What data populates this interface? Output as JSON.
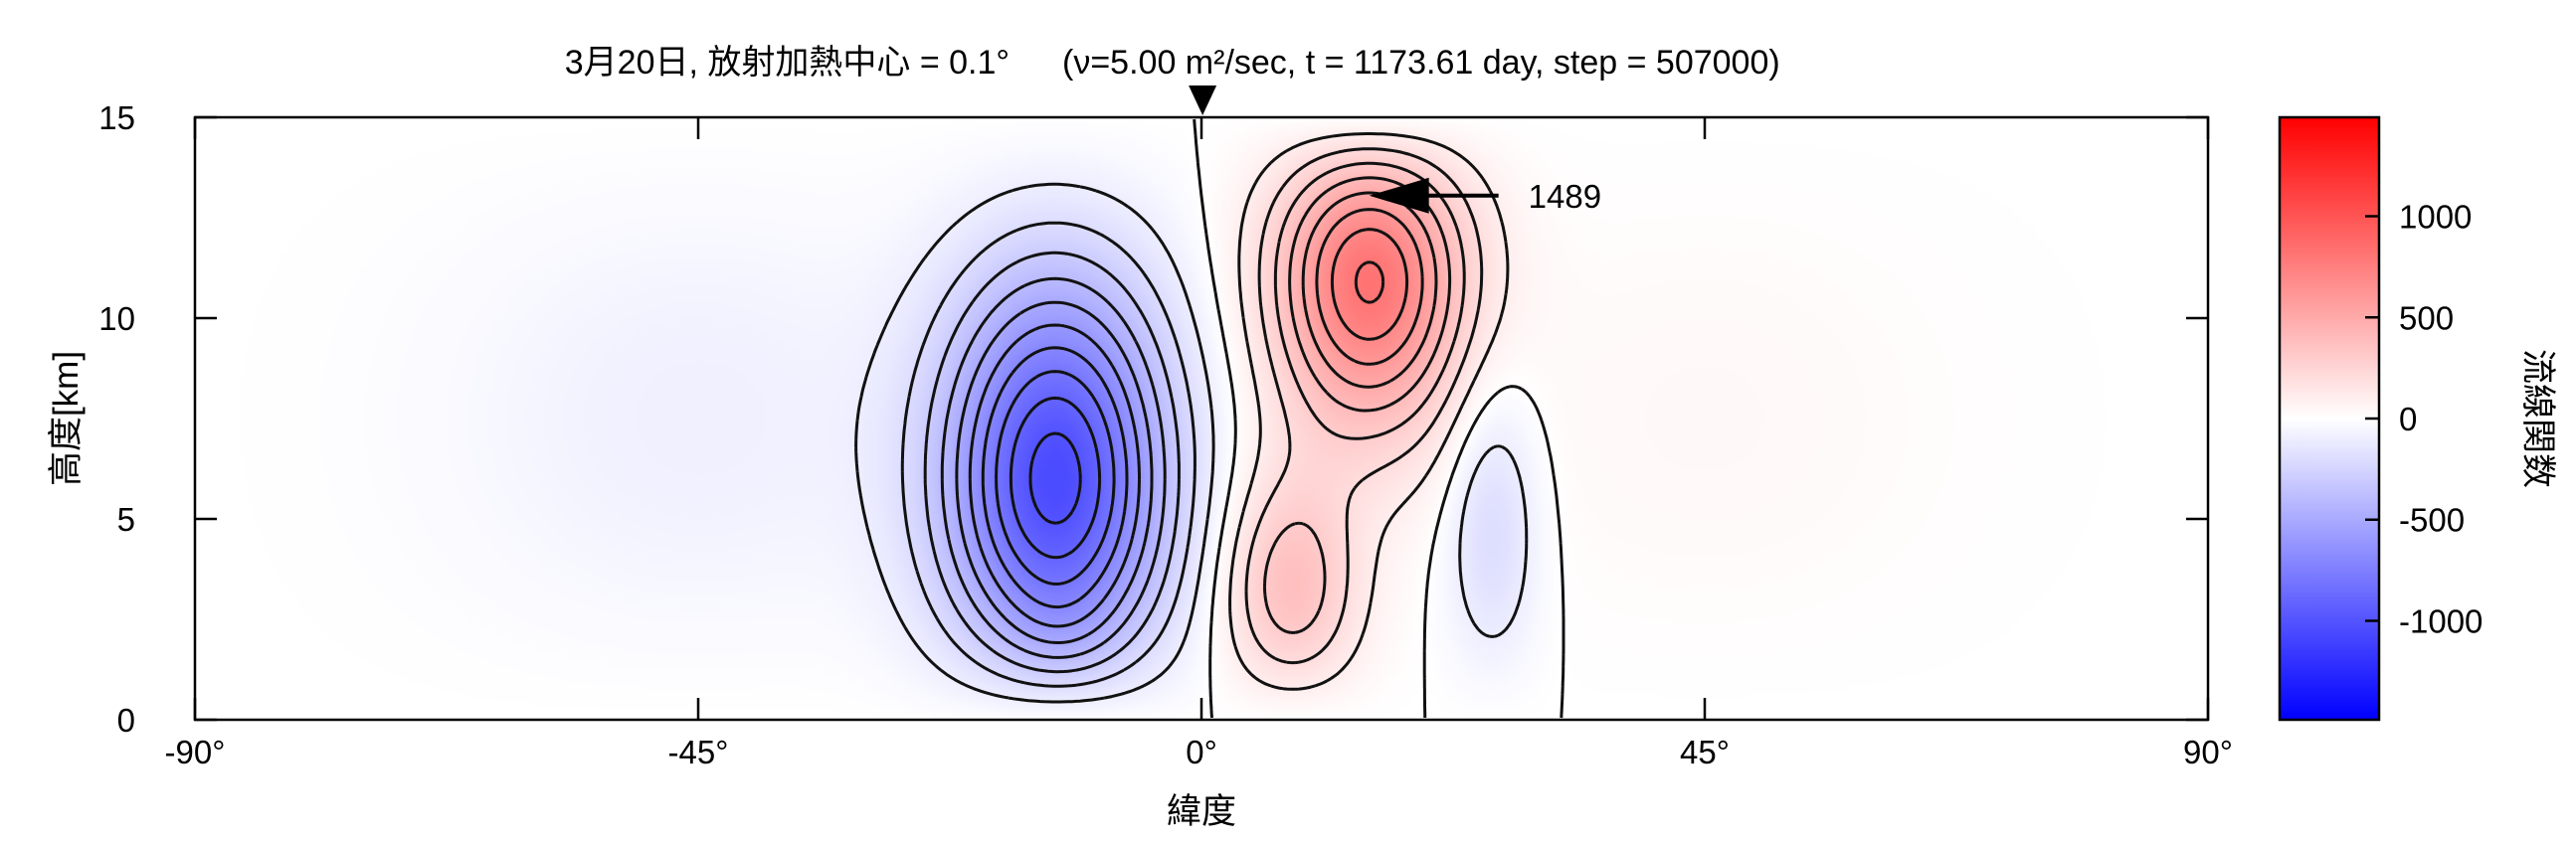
{
  "chart_data": {
    "type": "heatmap",
    "title": "3月20日, 放射加熱中心 = 0.1°",
    "title_params": "(ν=5.00 m²/sec, t = 1173.61 day, step = 507000)",
    "xlabel": "緯度",
    "ylabel": "高度[km]",
    "colorbar_label": "流線関数",
    "xlim": [
      -90,
      90
    ],
    "ylim": [
      0,
      15
    ],
    "x_ticks": [
      {
        "value": -90,
        "label": "-90°"
      },
      {
        "value": -45,
        "label": "-45°"
      },
      {
        "value": 0,
        "label": "0°"
      },
      {
        "value": 45,
        "label": "45°"
      },
      {
        "value": 90,
        "label": "90°"
      }
    ],
    "y_ticks": [
      {
        "value": 0,
        "label": "0"
      },
      {
        "value": 5,
        "label": "5"
      },
      {
        "value": 10,
        "label": "10"
      },
      {
        "value": 15,
        "label": "15"
      }
    ],
    "colorbar_range": [
      -1489,
      1489
    ],
    "colorbar_ticks": [
      {
        "value": 1000,
        "label": "1000"
      },
      {
        "value": 500,
        "label": "500"
      },
      {
        "value": 0,
        "label": "0"
      },
      {
        "value": -500,
        "label": "-500"
      },
      {
        "value": -1000,
        "label": "-1000"
      }
    ],
    "colormap": {
      "negative": "#0000ff",
      "zero": "#ffffff",
      "positive": "#ff0000"
    },
    "heating_center_marker": {
      "x": 0.1
    },
    "annotation": {
      "label": "1489",
      "x": 15,
      "y": 13.0
    },
    "cells": [
      {
        "name": "southern-cell",
        "center_x": -13,
        "center_y": 3.8,
        "sx": 10,
        "sy": 8,
        "amplitude": -1180
      },
      {
        "name": "southern-cell-low-core",
        "center_x": -12.5,
        "center_y": 1.7,
        "sx": 5,
        "sy": 1.5,
        "amplitude": -160
      },
      {
        "name": "northern-cell-upper",
        "center_x": 15,
        "center_y": 13.0,
        "sx": 8.5,
        "sy": 4.8,
        "amplitude": 1300
      },
      {
        "name": "northern-cell-lower",
        "center_x": 8,
        "center_y": 1.8,
        "sx": 6,
        "sy": 3.5,
        "amplitude": 700
      },
      {
        "name": "northern-weak-negative",
        "center_x": 26,
        "center_y": 3.5,
        "sx": 4,
        "sy": 4.5,
        "amplitude": -280
      },
      {
        "name": "southern-broad",
        "center_x": -45,
        "center_y": 7.5,
        "sx": 22,
        "sy": 9,
        "amplitude": -90
      },
      {
        "name": "northern-broad",
        "center_x": 45,
        "center_y": 7.5,
        "sx": 22,
        "sy": 9,
        "amplitude": 40
      }
    ],
    "contour_interval": 100
  }
}
